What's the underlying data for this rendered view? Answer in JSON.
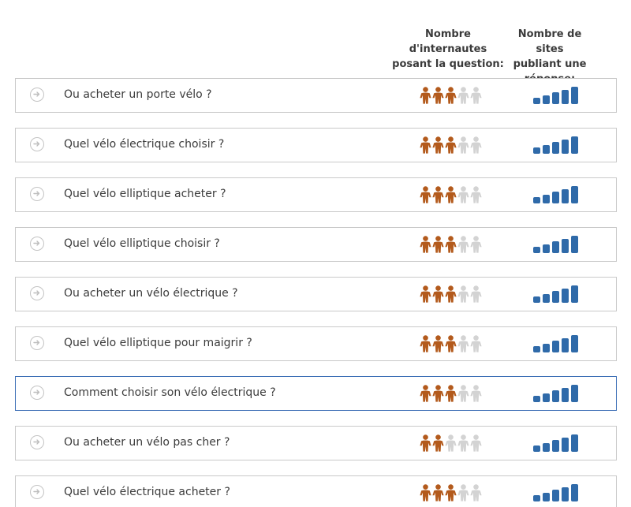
{
  "header": {
    "users_label": "Nombre\nd'internautes\nposant la question:",
    "sites_label": "Nombre de sites\npubliant une\nréponse:"
  },
  "colors": {
    "person_on": "#b35a1c",
    "person_off": "#d3d3d3",
    "bar_on": "#2f6aa9",
    "border": "#c9c9c9",
    "active_border": "#3d6fb6"
  },
  "rows": [
    {
      "question": "Ou acheter un porte vélo ?",
      "users": 3,
      "sites": 5,
      "active": false
    },
    {
      "question": "Quel vélo électrique choisir ?",
      "users": 3,
      "sites": 5,
      "active": false
    },
    {
      "question": "Quel vélo elliptique acheter ?",
      "users": 3,
      "sites": 5,
      "active": false
    },
    {
      "question": "Quel vélo elliptique choisir ?",
      "users": 3,
      "sites": 5,
      "active": false
    },
    {
      "question": "Ou acheter un vélo électrique ?",
      "users": 3,
      "sites": 5,
      "active": false
    },
    {
      "question": "Quel vélo elliptique pour maigrir ?",
      "users": 3,
      "sites": 5,
      "active": false
    },
    {
      "question": "Comment choisir son vélo électrique ?",
      "users": 3,
      "sites": 5,
      "active": true
    },
    {
      "question": "Ou acheter un vélo pas cher ?",
      "users": 2,
      "sites": 5,
      "active": false
    },
    {
      "question": "Quel vélo électrique acheter ?",
      "users": 3,
      "sites": 5,
      "active": false
    }
  ],
  "scale_max": 5,
  "icons": {
    "row_arrow": "arrow-right-circle-icon",
    "user": "person-icon",
    "level": "signal-bars-icon"
  }
}
